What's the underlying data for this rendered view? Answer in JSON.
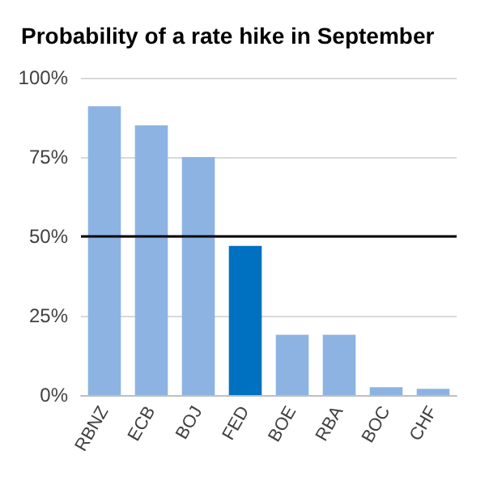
{
  "chart_data": {
    "type": "bar",
    "title": "Probability of a rate hike in September",
    "categories": [
      "RBNZ",
      "ECB",
      "BOJ",
      "FED",
      "BOE",
      "RBA",
      "BOC",
      "CHF"
    ],
    "values": [
      91,
      85,
      75,
      47,
      19,
      19,
      2.5,
      2
    ],
    "colors": [
      "#8db3e2",
      "#8db3e2",
      "#8db3e2",
      "#0070c0",
      "#8db3e2",
      "#8db3e2",
      "#8db3e2",
      "#8db3e2"
    ],
    "ylim": [
      0,
      100
    ],
    "yticks": [
      {
        "value": 0,
        "label": "0%"
      },
      {
        "value": 25,
        "label": "25%"
      },
      {
        "value": 50,
        "label": "50%"
      },
      {
        "value": 75,
        "label": "75%"
      },
      {
        "value": 100,
        "label": "100%"
      }
    ],
    "ref_lines": [
      {
        "axis": "y",
        "value": 50,
        "color": "#000000"
      }
    ],
    "grid": "y"
  }
}
